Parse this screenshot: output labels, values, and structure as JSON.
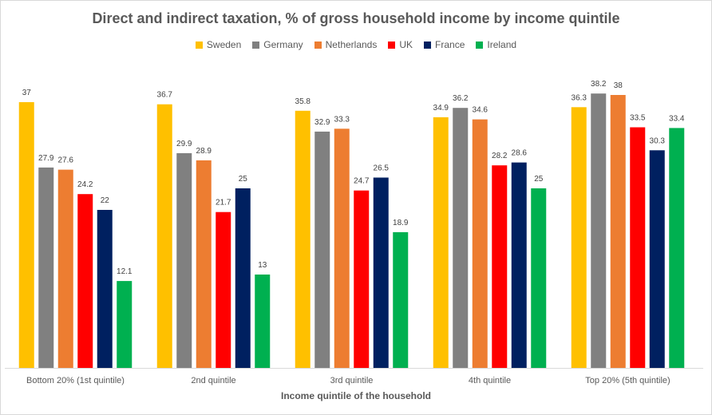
{
  "chart_data": {
    "type": "bar",
    "title": "Direct and indirect taxation, % of gross household income by income quintile",
    "xlabel": "Income quintile of the household",
    "ylabel": "",
    "ylim": [
      0,
      40
    ],
    "grid": false,
    "legend_position": "top",
    "categories": [
      "Bottom 20% (1st quintile)",
      "2nd quintile",
      "3rd quintile",
      "4th quintile",
      "Top 20% (5th quintile)"
    ],
    "series": [
      {
        "name": "Sweden",
        "color": "#FFC000",
        "values": [
          37,
          36.7,
          35.8,
          34.9,
          36.3
        ]
      },
      {
        "name": "Germany",
        "color": "#808080",
        "values": [
          27.9,
          29.9,
          32.9,
          36.2,
          38.2
        ]
      },
      {
        "name": "Netherlands",
        "color": "#ED7D31",
        "values": [
          27.6,
          28.9,
          33.3,
          34.6,
          38
        ]
      },
      {
        "name": "UK",
        "color": "#FF0000",
        "values": [
          24.2,
          21.7,
          24.7,
          28.2,
          33.5
        ]
      },
      {
        "name": "France",
        "color": "#002060",
        "values": [
          22,
          25,
          26.5,
          28.6,
          30.3
        ]
      },
      {
        "name": "Ireland",
        "color": "#00B050",
        "values": [
          12.1,
          13,
          18.9,
          25,
          33.4
        ]
      }
    ]
  }
}
